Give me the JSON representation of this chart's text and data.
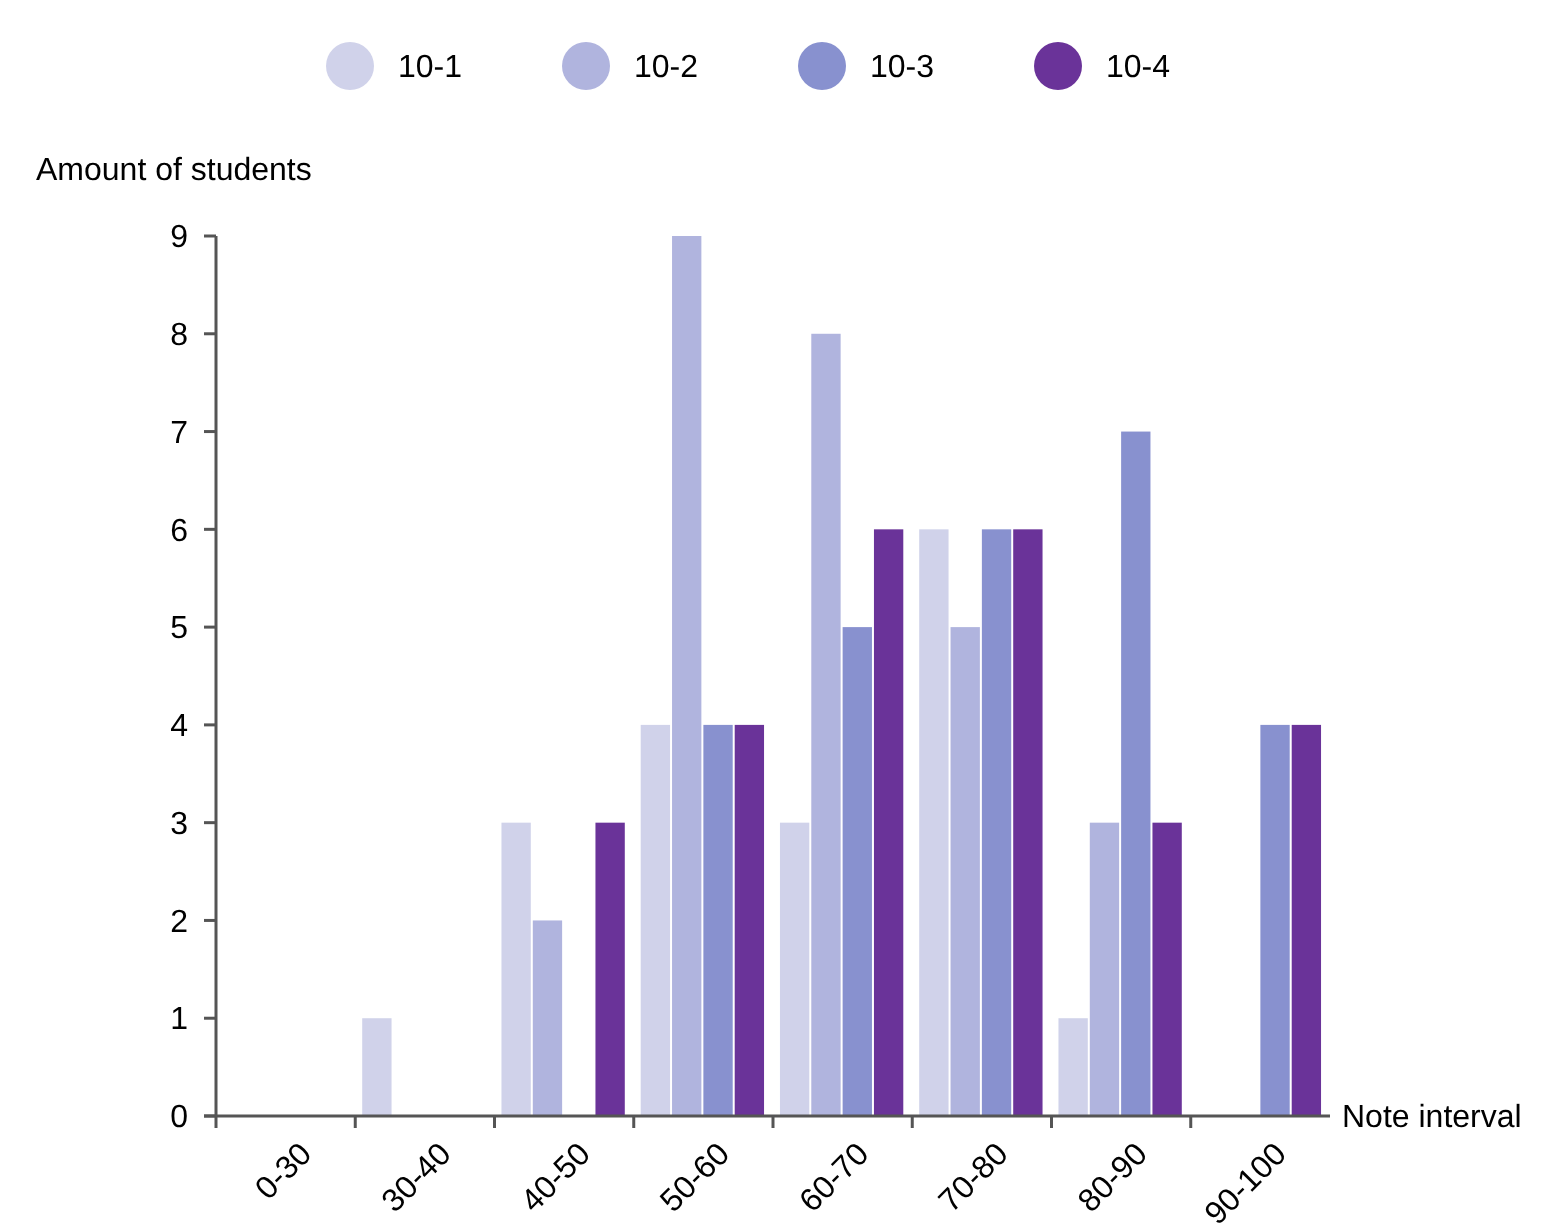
{
  "chart_data": {
    "type": "bar",
    "xlabel": "Note interval",
    "ylabel": "Amount of students",
    "categories": [
      "0-30",
      "30-40",
      "40-50",
      "50-60",
      "60-70",
      "70-80",
      "80-90",
      "90-100"
    ],
    "series": [
      {
        "name": "10-1",
        "color": "#d0d2ea",
        "values": [
          0,
          1,
          3,
          4,
          3,
          6,
          1,
          0
        ]
      },
      {
        "name": "10-2",
        "color": "#b0b4de",
        "values": [
          0,
          0,
          2,
          9,
          8,
          5,
          3,
          0
        ]
      },
      {
        "name": "10-3",
        "color": "#8891cf",
        "values": [
          0,
          0,
          0,
          4,
          5,
          6,
          7,
          4
        ]
      },
      {
        "name": "10-4",
        "color": "#6a3399",
        "values": [
          0,
          0,
          3,
          4,
          6,
          6,
          3,
          4
        ]
      }
    ],
    "ylim": [
      0,
      9
    ],
    "yticks": [
      0,
      1,
      2,
      3,
      4,
      5,
      6,
      7,
      8,
      9
    ],
    "grid": false,
    "legend": "top"
  }
}
